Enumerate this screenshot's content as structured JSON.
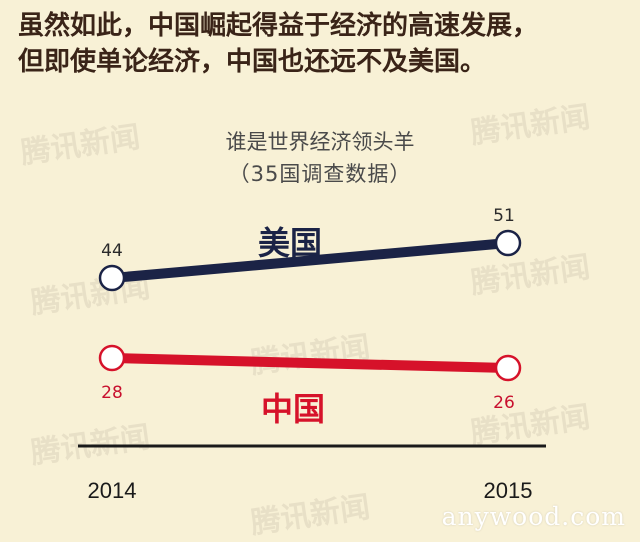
{
  "headline": {
    "line1": "虽然如此，中国崛起得益于经济的高速发展，",
    "line2": "但即使单论经济，中国也还远不及美国。"
  },
  "chart_data": {
    "type": "line",
    "title": "谁是世界经济领头羊",
    "subtitle": "（35国调查数据）",
    "x": [
      "2014",
      "2015"
    ],
    "series": [
      {
        "name": "美国",
        "values": [
          44,
          51
        ],
        "color": "#1b2346"
      },
      {
        "name": "中国",
        "values": [
          28,
          26
        ],
        "color": "#d6122a"
      }
    ],
    "ylim": [
      20,
      56
    ],
    "grid": false
  },
  "watermark": {
    "text": "腾讯新闻"
  },
  "site_credit": "anywood.com",
  "colors": {
    "background": "#f8f1d6",
    "headline": "#3a2418",
    "axis": "#1a1a1a"
  }
}
